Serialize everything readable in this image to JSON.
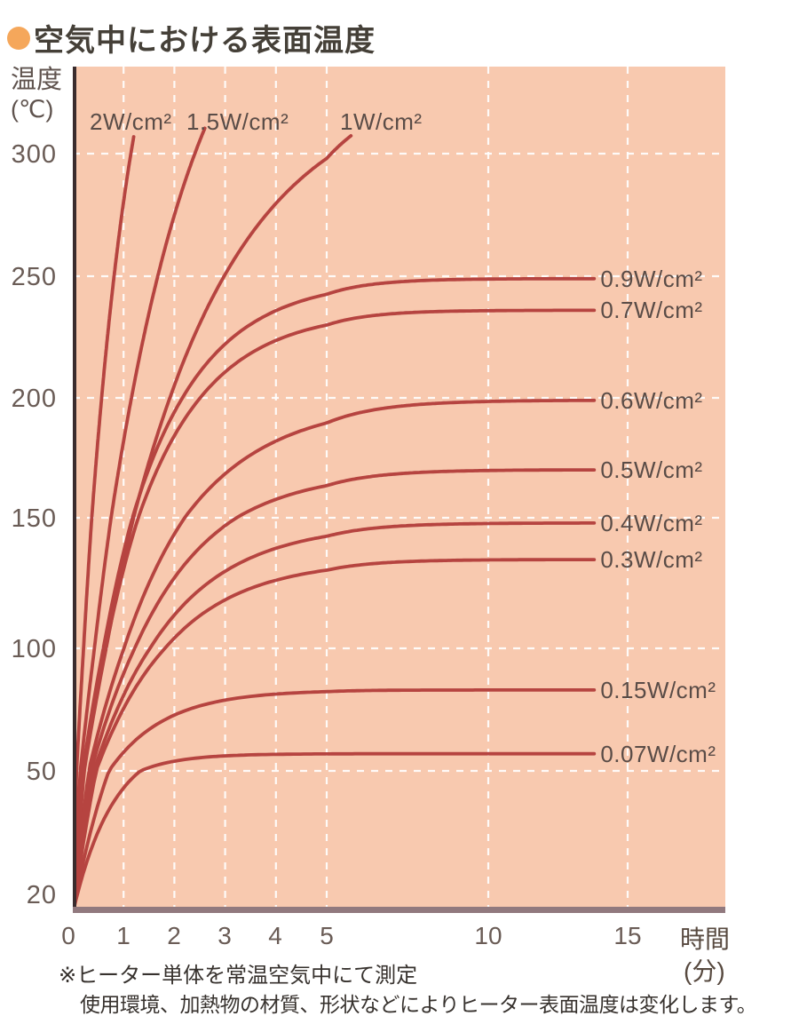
{
  "title": {
    "text": "空気中における表面温度",
    "bullet_color": "#f5a75b"
  },
  "axes": {
    "y_unit_line1": "温度",
    "y_unit_line2": "(℃)",
    "x_unit_line1": "時間",
    "x_unit_line2": "(分)",
    "y_ticks": [
      "300",
      "250",
      "200",
      "150",
      "100",
      "50",
      "20"
    ],
    "x_ticks": [
      "0",
      "1",
      "2",
      "3",
      "4",
      "5",
      "10",
      "15"
    ]
  },
  "footnote": {
    "line1": "※ヒーター単体を常温空気中にて測定",
    "line2": "使用環境、加熱物の材質、形状などによりヒーター表面温度は変化します。"
  },
  "colors": {
    "plot_background": "#f8c9af",
    "grid": "#ffffff",
    "curve": "#b64440",
    "left_axis": "#3a2c2e",
    "bottom_axis": "#91797e",
    "tick_text": "#6a5c56",
    "title_text": "#454038"
  },
  "chart_data": {
    "type": "line",
    "title": "空気中における表面温度 (Surface temperature in air)",
    "xlabel": "時間(分)",
    "ylabel": "温度(℃)",
    "x_axis": {
      "ticks": [
        0,
        1,
        2,
        3,
        4,
        5,
        10,
        15
      ],
      "note": "time axis compressed after 5 min"
    },
    "y_axis": {
      "min": 20,
      "max": 310,
      "ticks": [
        300,
        250,
        200,
        150,
        100,
        50,
        20
      ]
    },
    "grid": "white dashed on both axes",
    "legend_position": "labels at curve ends",
    "series": [
      {
        "label": "2W/cm²",
        "label_pos": "top",
        "off_scale_top": true,
        "final_temp_c": 305,
        "model": {
          "t_sat_c": 420,
          "tau_min": 0.95,
          "t_end_min": 1.2
        },
        "points": [
          [
            0,
            20
          ],
          [
            0.5,
            184
          ],
          [
            1,
            280
          ],
          [
            1.2,
            307
          ]
        ]
      },
      {
        "label": "1.5W/cm²",
        "label_pos": "top",
        "off_scale_top": true,
        "final_temp_c": 305,
        "model": {
          "t_sat_c": 400,
          "tau_min": 1.8,
          "t_end_min": 2.6
        },
        "points": [
          [
            0,
            20
          ],
          [
            0.5,
            112
          ],
          [
            1,
            182
          ],
          [
            1.5,
            235
          ],
          [
            2,
            275
          ],
          [
            2.6,
            310
          ]
        ]
      },
      {
        "label": "1W/cm²",
        "label_pos": "top",
        "off_scale_top": true,
        "final_temp_c": 305,
        "model": {
          "t_sat_c": 330,
          "tau_min": 2.2,
          "t_end_min": 5.75
        },
        "points": [
          [
            0,
            20
          ],
          [
            1,
            133
          ],
          [
            2,
            205
          ],
          [
            3,
            251
          ],
          [
            4,
            280
          ],
          [
            5,
            298
          ],
          [
            5.75,
            307
          ]
        ]
      },
      {
        "label": "0.9W/cm²",
        "label_pos": "right",
        "off_scale_top": false,
        "final_temp_c": 249,
        "model": {
          "t_sat_c": 249,
          "tau_min": 1.4,
          "t_end_min": 13.8
        },
        "points": [
          [
            0,
            20
          ],
          [
            1,
            137
          ],
          [
            2,
            194
          ],
          [
            3,
            222
          ],
          [
            5,
            243
          ],
          [
            10,
            248
          ],
          [
            14,
            249
          ]
        ]
      },
      {
        "label": "0.7W/cm²",
        "label_pos": "right",
        "off_scale_top": false,
        "final_temp_c": 236,
        "model": {
          "t_sat_c": 236,
          "tau_min": 1.4,
          "t_end_min": 13.8
        },
        "points": [
          [
            0,
            20
          ],
          [
            1,
            130
          ],
          [
            2,
            184
          ],
          [
            3,
            211
          ],
          [
            5,
            230
          ],
          [
            10,
            236
          ],
          [
            14,
            236
          ]
        ]
      },
      {
        "label": "0.6W/cm²",
        "label_pos": "right",
        "off_scale_top": false,
        "final_temp_c": 199,
        "model": {
          "t_sat_c": 199,
          "tau_min": 1.7,
          "t_end_min": 13.8
        },
        "points": [
          [
            0,
            20
          ],
          [
            1,
            100
          ],
          [
            2,
            144
          ],
          [
            3,
            168
          ],
          [
            5,
            190
          ],
          [
            10,
            198
          ],
          [
            14,
            199
          ]
        ]
      },
      {
        "label": "0.5W/cm²",
        "label_pos": "right",
        "off_scale_top": false,
        "final_temp_c": 170,
        "model": {
          "t_sat_c": 170,
          "tau_min": 1.6,
          "t_end_min": 13.8
        },
        "points": [
          [
            0,
            20
          ],
          [
            1,
            90
          ],
          [
            2,
            127
          ],
          [
            3,
            147
          ],
          [
            5,
            163
          ],
          [
            10,
            170
          ],
          [
            14,
            170
          ]
        ]
      },
      {
        "label": "0.4W/cm²",
        "label_pos": "right",
        "off_scale_top": false,
        "final_temp_c": 148,
        "model": {
          "t_sat_c": 148,
          "tau_min": 1.55,
          "t_end_min": 13.8
        },
        "points": [
          [
            0,
            20
          ],
          [
            1,
            81
          ],
          [
            2,
            113
          ],
          [
            3,
            130
          ],
          [
            5,
            143
          ],
          [
            10,
            148
          ],
          [
            14,
            148
          ]
        ]
      },
      {
        "label": "0.3W/cm²",
        "label_pos": "right",
        "off_scale_top": false,
        "final_temp_c": 134,
        "model": {
          "t_sat_c": 134,
          "tau_min": 1.5,
          "t_end_min": 13.8
        },
        "points": [
          [
            0,
            20
          ],
          [
            1,
            75
          ],
          [
            2,
            104
          ],
          [
            3,
            119
          ],
          [
            5,
            130
          ],
          [
            10,
            134
          ],
          [
            14,
            134
          ]
        ]
      },
      {
        "label": "0.15W/cm²",
        "label_pos": "right",
        "off_scale_top": false,
        "final_temp_c": 83,
        "model": {
          "t_sat_c": 83,
          "tau_min": 1.1,
          "t_end_min": 13.8
        },
        "points": [
          [
            0,
            20
          ],
          [
            1,
            58
          ],
          [
            2,
            73
          ],
          [
            3,
            79
          ],
          [
            5,
            82
          ],
          [
            10,
            83
          ],
          [
            14,
            83
          ]
        ]
      },
      {
        "label": "0.07W/cm²",
        "label_pos": "right",
        "off_scale_top": false,
        "final_temp_c": 57,
        "model": {
          "t_sat_c": 57,
          "tau_min": 0.8,
          "t_end_min": 13.8
        },
        "points": [
          [
            0,
            20
          ],
          [
            1,
            46
          ],
          [
            2,
            54
          ],
          [
            3,
            56
          ],
          [
            5,
            57
          ],
          [
            10,
            57
          ],
          [
            14,
            57
          ]
        ]
      }
    ]
  }
}
